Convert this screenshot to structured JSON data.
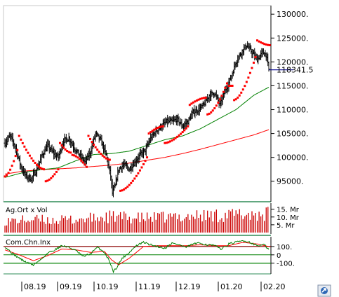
{
  "colors": {
    "price": "#000000",
    "sar": "#ff0000",
    "ma_fast": "#008000",
    "ma_slow": "#ff0000",
    "volume": "#cc0000",
    "cci": "#008000",
    "cci_signal": "#ff0000",
    "cci_threshold": "#8b0000",
    "cci_zero": "#008000",
    "last_price_line": "#00008b",
    "panel_border": "#2e8b57"
  },
  "chart_data": [
    {
      "type": "ohlc",
      "panel": "price",
      "y_ticks": [
        95000,
        100000,
        105000,
        110000,
        115000,
        120000,
        125000,
        130000
      ],
      "y_tick_labels": [
        "95000.",
        "100000.",
        "105000.",
        "110000.",
        "115000.",
        "120000.",
        "125000.",
        "130000."
      ],
      "last_price": 118341.5,
      "last_price_label": "118341.5",
      "ylim": [
        91000,
        131500
      ],
      "x_labels": [
        "08.19",
        "09.19",
        "10.19",
        "11.19",
        "12.19",
        "01.20",
        "02.20"
      ],
      "close_anchors": [
        [
          0,
          103000
        ],
        [
          6,
          104500
        ],
        [
          12,
          102000
        ],
        [
          18,
          98000
        ],
        [
          24,
          96000
        ],
        [
          30,
          95500
        ],
        [
          36,
          97500
        ],
        [
          42,
          100500
        ],
        [
          48,
          102500
        ],
        [
          54,
          101000
        ],
        [
          60,
          100000
        ],
        [
          66,
          103500
        ],
        [
          72,
          104000
        ],
        [
          78,
          102000
        ],
        [
          84,
          100500
        ],
        [
          90,
          99000
        ],
        [
          96,
          101000
        ],
        [
          102,
          105000
        ],
        [
          108,
          103500
        ],
        [
          114,
          100500
        ],
        [
          119,
          96000
        ],
        [
          121,
          92500
        ],
        [
          124,
          94000
        ],
        [
          128,
          97500
        ],
        [
          134,
          98500
        ],
        [
          140,
          97500
        ],
        [
          146,
          99000
        ],
        [
          152,
          100500
        ],
        [
          158,
          101500
        ],
        [
          164,
          104000
        ],
        [
          170,
          105500
        ],
        [
          176,
          106500
        ],
        [
          182,
          107500
        ],
        [
          188,
          107500
        ],
        [
          194,
          108000
        ],
        [
          200,
          106500
        ],
        [
          206,
          107500
        ],
        [
          212,
          109500
        ],
        [
          218,
          110000
        ],
        [
          224,
          111000
        ],
        [
          230,
          113000
        ],
        [
          236,
          113500
        ],
        [
          242,
          111000
        ],
        [
          248,
          114000
        ],
        [
          254,
          116500
        ],
        [
          260,
          120000
        ],
        [
          266,
          122000
        ],
        [
          272,
          123500
        ],
        [
          278,
          122000
        ],
        [
          284,
          120500
        ],
        [
          290,
          122000
        ],
        [
          294,
          121500
        ],
        [
          297,
          118400
        ]
      ],
      "ma_fast_anchors": [
        [
          0,
          95800
        ],
        [
          20,
          96800
        ],
        [
          40,
          97400
        ],
        [
          60,
          97800
        ],
        [
          80,
          99300
        ],
        [
          100,
          100600
        ],
        [
          120,
          100800
        ],
        [
          140,
          101300
        ],
        [
          160,
          102500
        ],
        [
          180,
          103700
        ],
        [
          200,
          104500
        ],
        [
          220,
          106000
        ],
        [
          240,
          108000
        ],
        [
          260,
          110000
        ],
        [
          280,
          113000
        ],
        [
          297,
          114700
        ]
      ],
      "ma_slow_anchors": [
        [
          0,
          96500
        ],
        [
          20,
          97100
        ],
        [
          40,
          97400
        ],
        [
          60,
          97600
        ],
        [
          80,
          97800
        ],
        [
          100,
          98100
        ],
        [
          120,
          98400
        ],
        [
          140,
          98800
        ],
        [
          160,
          99400
        ],
        [
          180,
          100000
        ],
        [
          200,
          100800
        ],
        [
          220,
          101700
        ],
        [
          240,
          102700
        ],
        [
          260,
          103700
        ],
        [
          280,
          104700
        ],
        [
          297,
          105800
        ]
      ],
      "sar_segments": [
        {
          "pos": "below",
          "from": 0,
          "to": 14,
          "a": 96000,
          "b": 101500
        },
        {
          "pos": "above",
          "from": 16,
          "to": 44,
          "a": 104500,
          "b": 97500
        },
        {
          "pos": "below",
          "from": 46,
          "to": 60,
          "a": 95000,
          "b": 97500
        },
        {
          "pos": "above",
          "from": 62,
          "to": 74,
          "a": 103000,
          "b": 101000
        },
        {
          "pos": "below",
          "from": 76,
          "to": 92,
          "a": 100500,
          "b": 98000
        },
        {
          "pos": "above",
          "from": 94,
          "to": 118,
          "a": 104500,
          "b": 99500
        },
        {
          "pos": "below",
          "from": 130,
          "to": 160,
          "a": 93000,
          "b": 100000
        },
        {
          "pos": "above",
          "from": 162,
          "to": 178,
          "a": 105000,
          "b": 106500
        },
        {
          "pos": "below",
          "from": 180,
          "to": 206,
          "a": 103000,
          "b": 106500
        },
        {
          "pos": "above",
          "from": 208,
          "to": 226,
          "a": 111000,
          "b": 112500
        },
        {
          "pos": "below",
          "from": 228,
          "to": 250,
          "a": 109000,
          "b": 115500
        },
        {
          "pos": "above",
          "from": 252,
          "to": 256,
          "a": 115000,
          "b": 115000
        },
        {
          "pos": "below",
          "from": 258,
          "to": 282,
          "a": 112000,
          "b": 121000
        },
        {
          "pos": "above",
          "from": 284,
          "to": 298,
          "a": 124500,
          "b": 123500
        }
      ]
    },
    {
      "type": "bar",
      "panel": "volume",
      "title": "Ag.Ort x Vol",
      "y_ticks": [
        5,
        10,
        15
      ],
      "y_tick_labels": [
        "5. Mr",
        "10. Mr",
        "15. Mr"
      ],
      "ylim": [
        0,
        18
      ],
      "value_anchors": [
        [
          0,
          8
        ],
        [
          30,
          9
        ],
        [
          60,
          8.5
        ],
        [
          90,
          9.5
        ],
        [
          120,
          11
        ],
        [
          150,
          10
        ],
        [
          180,
          10.5
        ],
        [
          210,
          11.5
        ],
        [
          240,
          12
        ],
        [
          270,
          12.5
        ],
        [
          297,
          13
        ]
      ]
    },
    {
      "type": "line",
      "panel": "cci",
      "title": "Com.Chn.Inx",
      "y_ticks": [
        -100,
        0,
        100
      ],
      "y_tick_labels": [
        "-100.",
        "0",
        "100."
      ],
      "ylim": [
        -220,
        200
      ],
      "cci_anchors": [
        [
          0,
          100
        ],
        [
          8,
          20
        ],
        [
          16,
          -40
        ],
        [
          24,
          -90
        ],
        [
          32,
          -120
        ],
        [
          40,
          -60
        ],
        [
          48,
          20
        ],
        [
          56,
          60
        ],
        [
          64,
          110
        ],
        [
          72,
          90
        ],
        [
          80,
          50
        ],
        [
          88,
          -20
        ],
        [
          96,
          10
        ],
        [
          104,
          90
        ],
        [
          112,
          30
        ],
        [
          118,
          -80
        ],
        [
          122,
          -200
        ],
        [
          126,
          -150
        ],
        [
          132,
          -40
        ],
        [
          140,
          30
        ],
        [
          148,
          110
        ],
        [
          156,
          150
        ],
        [
          164,
          120
        ],
        [
          172,
          100
        ],
        [
          180,
          80
        ],
        [
          188,
          140
        ],
        [
          196,
          120
        ],
        [
          204,
          90
        ],
        [
          212,
          130
        ],
        [
          220,
          140
        ],
        [
          228,
          120
        ],
        [
          236,
          110
        ],
        [
          244,
          70
        ],
        [
          252,
          130
        ],
        [
          260,
          150
        ],
        [
          268,
          170
        ],
        [
          276,
          150
        ],
        [
          284,
          110
        ],
        [
          292,
          120
        ],
        [
          297,
          60
        ]
      ],
      "signal_anchors": [
        [
          0,
          60
        ],
        [
          16,
          0
        ],
        [
          32,
          -70
        ],
        [
          48,
          -10
        ],
        [
          64,
          70
        ],
        [
          80,
          60
        ],
        [
          96,
          30
        ],
        [
          112,
          40
        ],
        [
          120,
          -60
        ],
        [
          128,
          -120
        ],
        [
          140,
          -40
        ],
        [
          156,
          100
        ],
        [
          172,
          110
        ],
        [
          188,
          110
        ],
        [
          204,
          110
        ],
        [
          220,
          120
        ],
        [
          236,
          110
        ],
        [
          252,
          110
        ],
        [
          268,
          150
        ],
        [
          284,
          130
        ],
        [
          297,
          100
        ]
      ]
    }
  ]
}
